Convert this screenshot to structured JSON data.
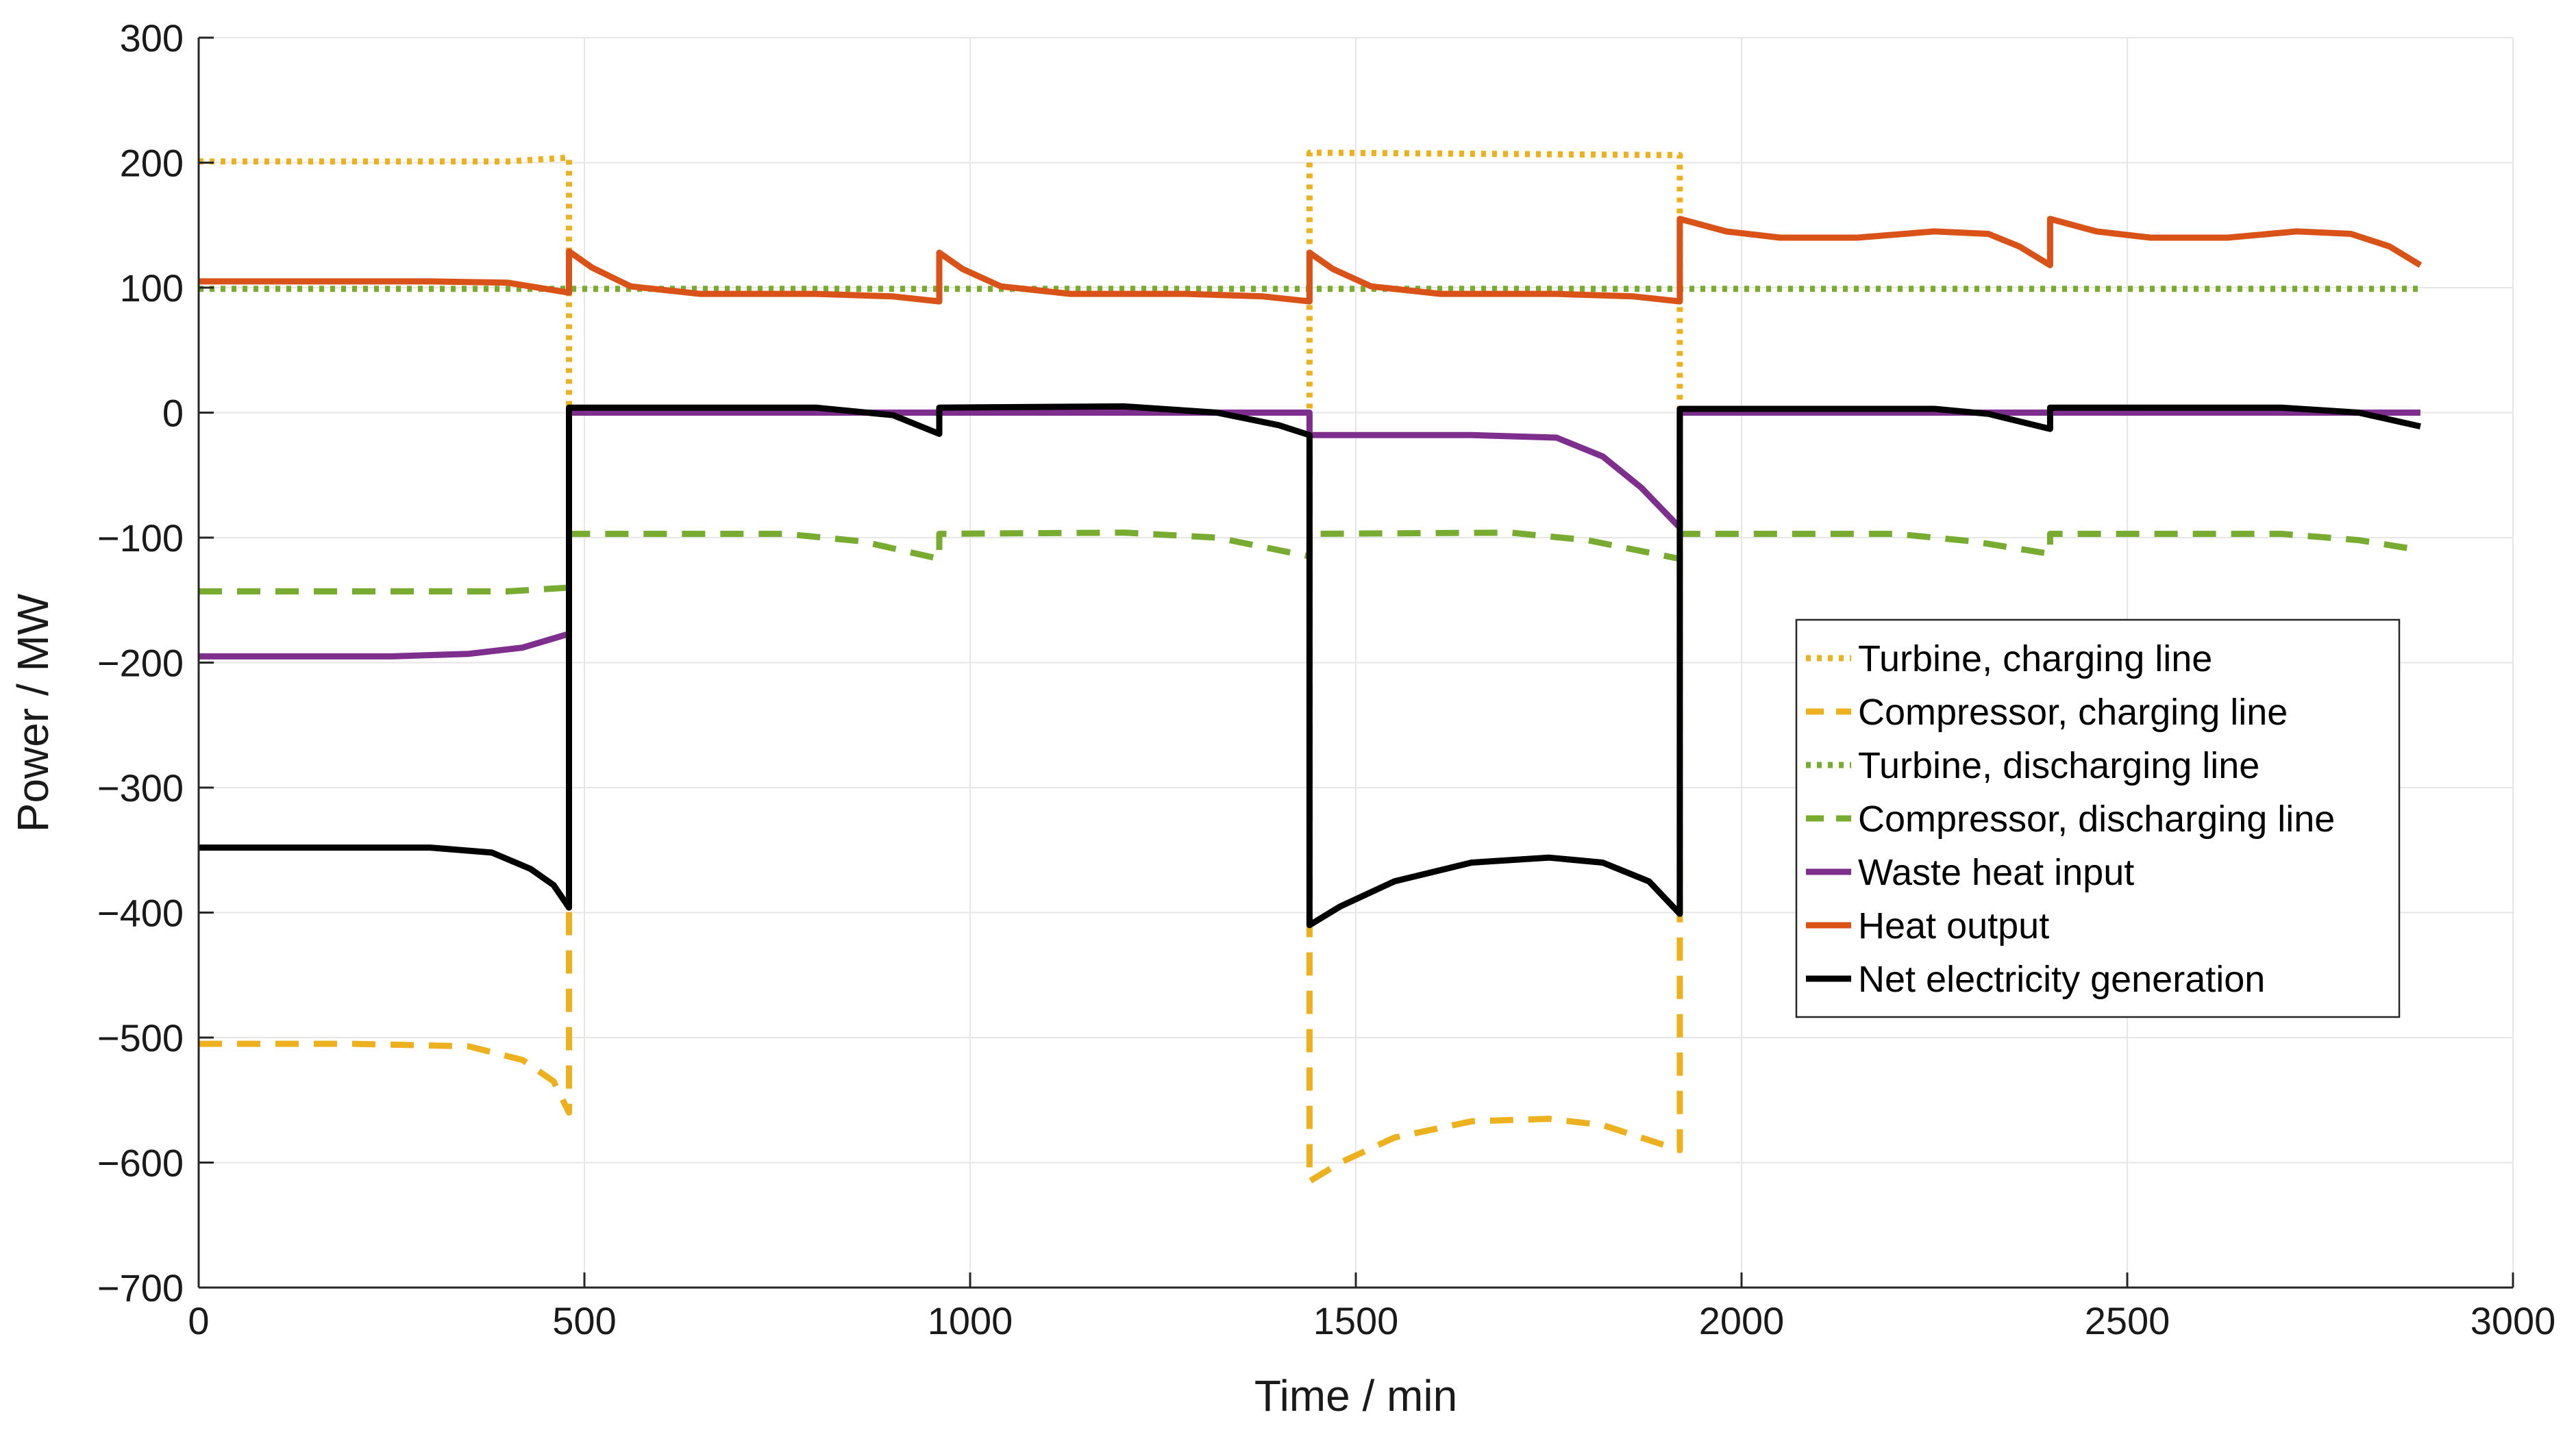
{
  "chart_data": {
    "type": "line",
    "title": "",
    "xlabel": "Time / min",
    "ylabel": "Power / MW",
    "xlim": [
      0,
      3000
    ],
    "ylim": [
      -700,
      300
    ],
    "xticks": [
      0,
      500,
      1000,
      1500,
      2000,
      2500,
      3000
    ],
    "yticks": [
      300,
      200,
      100,
      0,
      -100,
      -200,
      -300,
      -400,
      -500,
      -600,
      -700
    ],
    "xtick_labels": [
      "0",
      "500",
      "1000",
      "1500",
      "2000",
      "2500",
      "3000"
    ],
    "ytick_labels": [
      "300",
      "200",
      "100",
      "0",
      "−100",
      "−200",
      "−300",
      "−400",
      "−500",
      "−600",
      "−700"
    ],
    "grid": true,
    "legend_position": "center-right",
    "series": [
      {
        "name": "Turbine, charging line",
        "color": "#EDB120",
        "dash": "dotted",
        "points": [
          [
            0,
            201
          ],
          [
            400,
            201
          ],
          [
            480,
            204
          ],
          [
            480,
            0
          ],
          [
            1440,
            0
          ],
          [
            1440,
            208
          ],
          [
            1920,
            206
          ],
          [
            1920,
            0
          ],
          [
            2880,
            0
          ]
        ]
      },
      {
        "name": "Compressor, charging line",
        "color": "#EDB120",
        "dash": "dashed",
        "points": [
          [
            0,
            -505
          ],
          [
            200,
            -505
          ],
          [
            350,
            -507
          ],
          [
            420,
            -518
          ],
          [
            460,
            -535
          ],
          [
            480,
            -560
          ],
          [
            480,
            0
          ],
          [
            1440,
            0
          ],
          [
            1440,
            -615
          ],
          [
            1480,
            -600
          ],
          [
            1550,
            -580
          ],
          [
            1650,
            -567
          ],
          [
            1750,
            -565
          ],
          [
            1820,
            -570
          ],
          [
            1880,
            -582
          ],
          [
            1920,
            -590
          ],
          [
            1920,
            0
          ],
          [
            2880,
            0
          ]
        ]
      },
      {
        "name": "Turbine, discharging line",
        "color": "#77AC30",
        "dash": "dotted",
        "points": [
          [
            0,
            99
          ],
          [
            2880,
            99
          ]
        ]
      },
      {
        "name": "Compressor, discharging line",
        "color": "#77AC30",
        "dash": "dashed",
        "points": [
          [
            0,
            -143
          ],
          [
            400,
            -143
          ],
          [
            480,
            -140
          ],
          [
            480,
            -97
          ],
          [
            760,
            -97
          ],
          [
            860,
            -103
          ],
          [
            960,
            -117
          ],
          [
            960,
            -97
          ],
          [
            1200,
            -96
          ],
          [
            1320,
            -100
          ],
          [
            1440,
            -115
          ],
          [
            1440,
            -97
          ],
          [
            1700,
            -96
          ],
          [
            1800,
            -102
          ],
          [
            1920,
            -117
          ],
          [
            1920,
            -97
          ],
          [
            2200,
            -97
          ],
          [
            2300,
            -103
          ],
          [
            2400,
            -113
          ],
          [
            2400,
            -97
          ],
          [
            2700,
            -97
          ],
          [
            2800,
            -102
          ],
          [
            2880,
            -110
          ]
        ]
      },
      {
        "name": "Waste heat input",
        "color": "#7E2F8E",
        "dash": "solid",
        "points": [
          [
            0,
            -195
          ],
          [
            250,
            -195
          ],
          [
            350,
            -193
          ],
          [
            420,
            -188
          ],
          [
            480,
            -177
          ],
          [
            480,
            0
          ],
          [
            1440,
            0
          ],
          [
            1440,
            -18
          ],
          [
            1650,
            -18
          ],
          [
            1760,
            -20
          ],
          [
            1820,
            -35
          ],
          [
            1870,
            -60
          ],
          [
            1920,
            -92
          ],
          [
            1920,
            0
          ],
          [
            2880,
            0
          ]
        ]
      },
      {
        "name": "Heat output",
        "color": "#D95319",
        "dash": "solid",
        "points": [
          [
            0,
            105
          ],
          [
            300,
            105
          ],
          [
            400,
            104
          ],
          [
            480,
            96
          ],
          [
            480,
            129
          ],
          [
            510,
            116
          ],
          [
            560,
            101
          ],
          [
            650,
            95
          ],
          [
            800,
            95
          ],
          [
            900,
            93
          ],
          [
            960,
            89
          ],
          [
            960,
            128
          ],
          [
            990,
            115
          ],
          [
            1040,
            101
          ],
          [
            1130,
            95
          ],
          [
            1280,
            95
          ],
          [
            1380,
            93
          ],
          [
            1440,
            89
          ],
          [
            1440,
            128
          ],
          [
            1470,
            115
          ],
          [
            1520,
            101
          ],
          [
            1610,
            95
          ],
          [
            1760,
            95
          ],
          [
            1860,
            93
          ],
          [
            1920,
            89
          ],
          [
            1920,
            155
          ],
          [
            1980,
            145
          ],
          [
            2050,
            140
          ],
          [
            2150,
            140
          ],
          [
            2250,
            145
          ],
          [
            2320,
            143
          ],
          [
            2360,
            133
          ],
          [
            2400,
            118
          ],
          [
            2400,
            155
          ],
          [
            2460,
            145
          ],
          [
            2530,
            140
          ],
          [
            2630,
            140
          ],
          [
            2720,
            145
          ],
          [
            2790,
            143
          ],
          [
            2840,
            133
          ],
          [
            2880,
            118
          ]
        ]
      },
      {
        "name": "Net electricity generation",
        "color": "#000000",
        "dash": "solid",
        "points": [
          [
            0,
            -348
          ],
          [
            300,
            -348
          ],
          [
            380,
            -352
          ],
          [
            430,
            -365
          ],
          [
            460,
            -378
          ],
          [
            480,
            -396
          ],
          [
            480,
            4
          ],
          [
            800,
            4
          ],
          [
            900,
            -2
          ],
          [
            960,
            -17
          ],
          [
            960,
            4
          ],
          [
            1200,
            5
          ],
          [
            1320,
            0
          ],
          [
            1400,
            -10
          ],
          [
            1440,
            -18
          ],
          [
            1440,
            -410
          ],
          [
            1480,
            -395
          ],
          [
            1550,
            -375
          ],
          [
            1650,
            -360
          ],
          [
            1750,
            -356
          ],
          [
            1820,
            -360
          ],
          [
            1880,
            -375
          ],
          [
            1920,
            -401
          ],
          [
            1920,
            3
          ],
          [
            2250,
            3
          ],
          [
            2320,
            -1
          ],
          [
            2400,
            -13
          ],
          [
            2400,
            4
          ],
          [
            2700,
            4
          ],
          [
            2800,
            0
          ],
          [
            2880,
            -11
          ]
        ]
      }
    ]
  }
}
